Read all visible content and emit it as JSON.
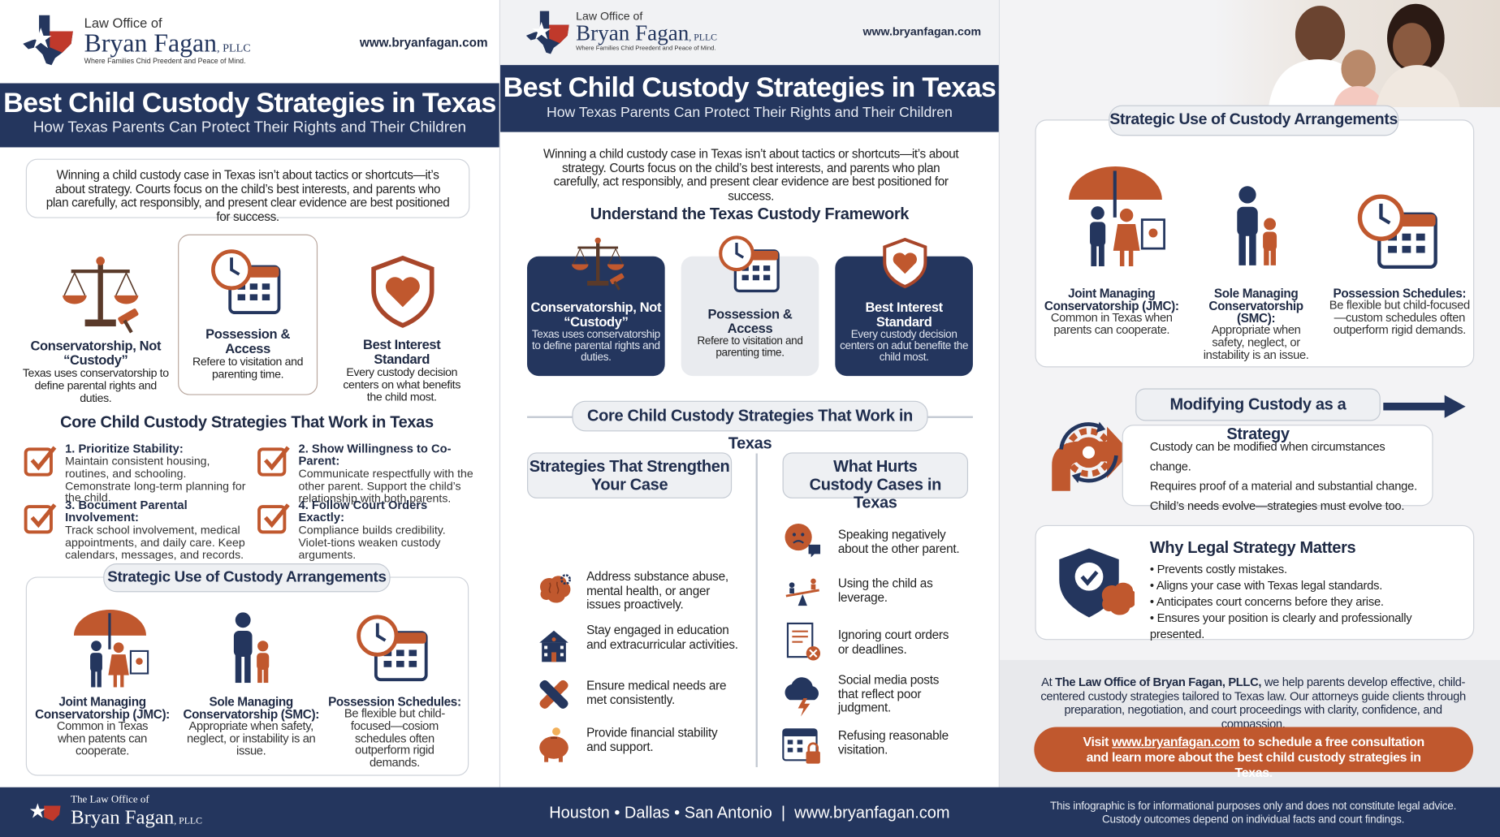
{
  "left": {
    "logo": {
      "line1": "Law Office of",
      "name": "Bryan Fagan",
      "suffix": ", PLLC",
      "tagline": "Where Families Chid Preedent and Peace of Mind."
    },
    "website": "www.bryanfagan.com",
    "title": "Best Child Custody Strategies in Texas",
    "subtitle": "How Texas Parents Can Protect Their Rights and Their Children",
    "intro": "Winning a child custody case in Texas isn’t about tactics or shortcuts—it’s about strategy. Courts focus on the child’s best interests, and parents who plan carefully, act responsibly, and present clear evidence are best positioned for success.",
    "framework": [
      {
        "title": "Conservatorship, Not “Custody”",
        "text": "Texas uses conservatorship to define parental rights and duties."
      },
      {
        "title": "Possession & Access",
        "text": "Refere to visitation and parenting time."
      },
      {
        "title": "Best Interest Standard",
        "text": "Every custody decision centers on what benefits the child most."
      }
    ],
    "core_heading": "Core Child Custody Strategies That Work in Texas",
    "strategies": [
      {
        "title": "1. Prioritize Stability:",
        "text": "Maintain consistent housing, routines, and schooling. Cemonstrate long-term planning for the child."
      },
      {
        "title": "2. Show Willingness to Co-Parent:",
        "text": "Communicate respectfully with the other parent. Support the child’s relationship with both parents."
      },
      {
        "title": "3. Bocument Parental Involvement:",
        "text": "Track school involvement, medical appointments, and daily care. Keep calendars, messages, and records."
      },
      {
        "title": "4. Follow Court Orders Exactly:",
        "text": "Compliance builds credibility. Violet-tions weaken custody arguments."
      }
    ],
    "arrangements_heading": "Strategic Use of Custody Arrangements",
    "arrangements": [
      {
        "title": "Joint Managing Conservatorship (JMC):",
        "text": "Common in Texas when patents can cooperate."
      },
      {
        "title": "Sole Managing Conservatorship (SMC):",
        "text": "Appropriate when safety, neglect, or instability is an issue."
      },
      {
        "title": "Possession Schedules:",
        "text": "Be flexible but child-focused—cosiom schedules often outperform rigid demands."
      }
    ]
  },
  "middle": {
    "logo": {
      "line1": "Law Office of",
      "name": "Bryan Fagan",
      "suffix": ", PLLC",
      "tagline": "Where Families Chid Preedent and Peace of Mind."
    },
    "website": "www.bryanfagan.com",
    "title": "Best Child Custody Strategies in Texas",
    "subtitle": "How Texas Parents Can Protect Their Rights and Their Children",
    "intro": "Winning a child custody case in Texas isn’t about tactics or shortcuts—it’s about strategy. Courts focus on the child’s best interests, and parents who plan carefully, act responsibly, and present clear evidence are best positioned for success.",
    "framework_heading": "Understand the Texas Custody Framework",
    "framework": [
      {
        "title": "Conservatorship, Not “Custody”",
        "text": "Texas uses conservatorship to define parental rights and duties."
      },
      {
        "title": "Possession & Access",
        "text": "Refere to visitation and parenting time."
      },
      {
        "title": "Best Interest Standard",
        "text": "Every custody decision centers on adut benefite the child most."
      }
    ],
    "core_heading": "Core Child Custody Strategies That Work in Texas",
    "strengthen_heading": "Strategies That Strengthen Your Case",
    "strengthen": [
      "Address substance abuse, mental health, or anger issues proactively.",
      "Stay engaged in education and extracurricular activities.",
      "Ensure medical needs are met consistently.",
      "Provide financial stability and support."
    ],
    "hurts_heading": "What Hurts Custody Cases in Texas",
    "hurts": [
      "Speaking negatively about the other parent.",
      "Using the child as leverage.",
      "Ignoring court orders or deadlines.",
      "Social media posts that reflect poor judgment.",
      "Refusing reasonable visitation."
    ]
  },
  "right": {
    "arrangements_heading": "Strategic Use of Custody Arrangements",
    "arrangements": [
      {
        "title": "Joint Managing Conservatorship (JMC):",
        "text": "Common in Texas when parents can cooperate."
      },
      {
        "title": "Sole Managing Conservatorship (SMC):",
        "text": "Appropriate when safety, neglect, or instability is an issue."
      },
      {
        "title": "Possession Schedules:",
        "text": "Be flexible but child-focused—custom schedules often outperform rigid demands."
      }
    ],
    "modifying_heading": "Modifying Custody as a Strategy",
    "modifying": [
      "Custody can be modified when circumstances change.",
      "Requires proof of a material and substantial change.",
      "Child’s needs evolve—strategies must evolve too."
    ],
    "why_heading": "Why Legal Strategy Matters",
    "why": [
      "Prevents costly mistakes.",
      "Aligns your case with Texas legal standards.",
      "Anticipates court concerns before they arise.",
      "Ensures your position is clearly and professionally presented."
    ],
    "closing": {
      "lead": "At",
      "firm": "The Law Office of Bryan Fagan, PLLC,",
      "text": "we help parents develop effective, child-centered custody strategies tailored to Texas law. Our attorneys guide clients through preparation, negotiation, and court proceedings with clarity, confidence, and compassion."
    },
    "cta": {
      "lead": "Visit",
      "link": "www.bryanfagan.com",
      "text": "to schedule a free consultation and learn more about the best child custody strategies in Texas."
    }
  },
  "footer": {
    "logo": {
      "line1": "The Law Office of",
      "name": "Bryan Fagan",
      "suffix": ", PLLC"
    },
    "locations": "Houston • Dallas • San Antonio  |  www.bryanfagan.com",
    "disclaimer": "This infographic is for informational purposes only and does not constitute legal advice. Custody outcomes depend on individual facts and court findings."
  }
}
